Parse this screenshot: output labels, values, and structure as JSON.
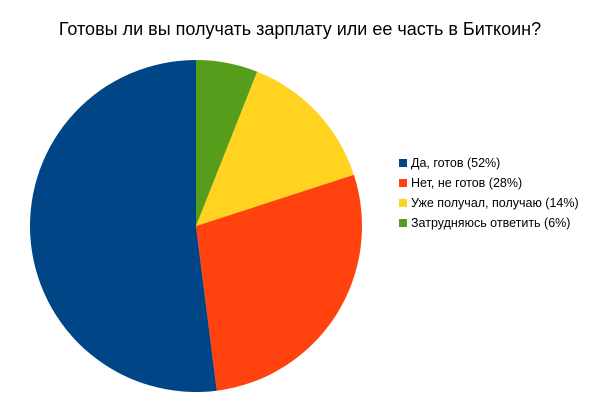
{
  "chart_data": {
    "type": "pie",
    "title": "Готовы ли вы получать зарплату или ее часть в Биткоин?",
    "categories": [
      "Да, готов (52%)",
      "Нет, не готов (28%)",
      "Уже получал, получаю (14%)",
      "Затрудняюсь ответить (6%)"
    ],
    "values": [
      52,
      28,
      14,
      6
    ],
    "colors": [
      "#004586",
      "#ff420e",
      "#ffd320",
      "#579d1c"
    ],
    "start_angle_deg": 0,
    "direction": "counterclockwise",
    "legend_position": "right"
  }
}
